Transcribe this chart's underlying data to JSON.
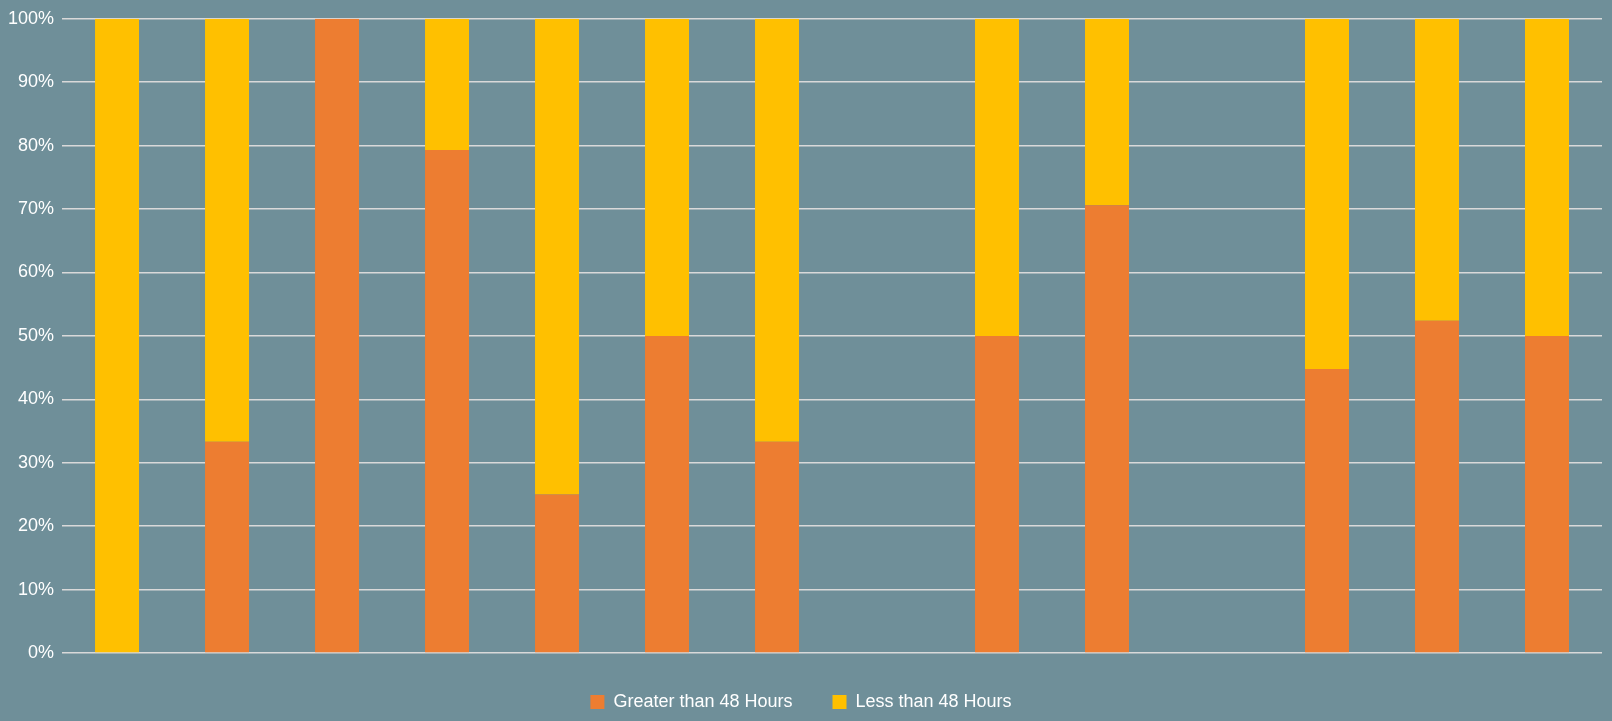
{
  "chart_data": {
    "type": "bar",
    "stacked": true,
    "categories": [
      null,
      null,
      null,
      null,
      null,
      null,
      null,
      null,
      null,
      null,
      null,
      null,
      null,
      null
    ],
    "series": [
      {
        "name": "Greater than 48 Hours",
        "color": "#ed7d31",
        "values": [
          0,
          33.3,
          100,
          79.3,
          25,
          50,
          33.3,
          null,
          50,
          70.6,
          null,
          44.8,
          52.4,
          50
        ]
      },
      {
        "name": "Less than 48 Hours",
        "color": "#ffc000",
        "values": [
          100,
          66.7,
          0,
          20.7,
          75,
          50,
          66.7,
          null,
          50,
          29.4,
          null,
          55.2,
          47.6,
          50
        ]
      }
    ],
    "ylim": [
      0,
      100
    ],
    "yticks": [
      {
        "value": 0,
        "label": "0%"
      },
      {
        "value": 10,
        "label": "10%"
      },
      {
        "value": 20,
        "label": "20%"
      },
      {
        "value": 30,
        "label": "30%"
      },
      {
        "value": 40,
        "label": "40%"
      },
      {
        "value": 50,
        "label": "50%"
      },
      {
        "value": 60,
        "label": "60%"
      },
      {
        "value": 70,
        "label": "70%"
      },
      {
        "value": 80,
        "label": "80%"
      },
      {
        "value": 90,
        "label": "90%"
      },
      {
        "value": 100,
        "label": "100%"
      }
    ],
    "grid": "y",
    "legend": "bottom",
    "tick_labels": "y"
  }
}
